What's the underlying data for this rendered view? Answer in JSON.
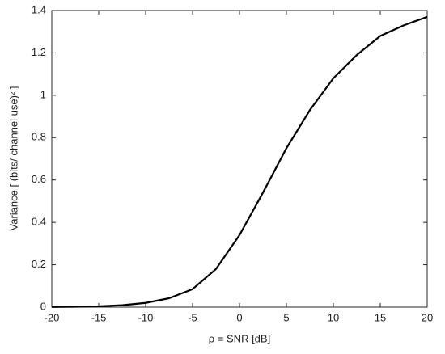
{
  "chart_data": {
    "type": "line",
    "xlabel": "ρ = SNR  [dB]",
    "ylabel": "Variance  [ (bits/ channel use)² ]",
    "x": [
      -20,
      -17.5,
      -15,
      -12.5,
      -10,
      -7.5,
      -5,
      -2.5,
      0,
      2.5,
      5,
      7.5,
      10,
      12.5,
      15,
      17.5,
      20
    ],
    "series": [
      {
        "color": "#000000",
        "values": [
          0.001,
          0.002,
          0.004,
          0.009,
          0.02,
          0.042,
          0.085,
          0.18,
          0.34,
          0.54,
          0.75,
          0.93,
          1.08,
          1.19,
          1.28,
          1.33,
          1.37
        ]
      }
    ],
    "xlim": [
      -20,
      20
    ],
    "xticks": [
      -20,
      -15,
      -10,
      -5,
      0,
      5,
      10,
      15,
      20
    ],
    "ylim": [
      0,
      1.4
    ],
    "yticks": [
      0,
      0.2,
      0.4,
      0.6,
      0.8,
      1,
      1.2,
      1.4
    ],
    "grid": false
  }
}
